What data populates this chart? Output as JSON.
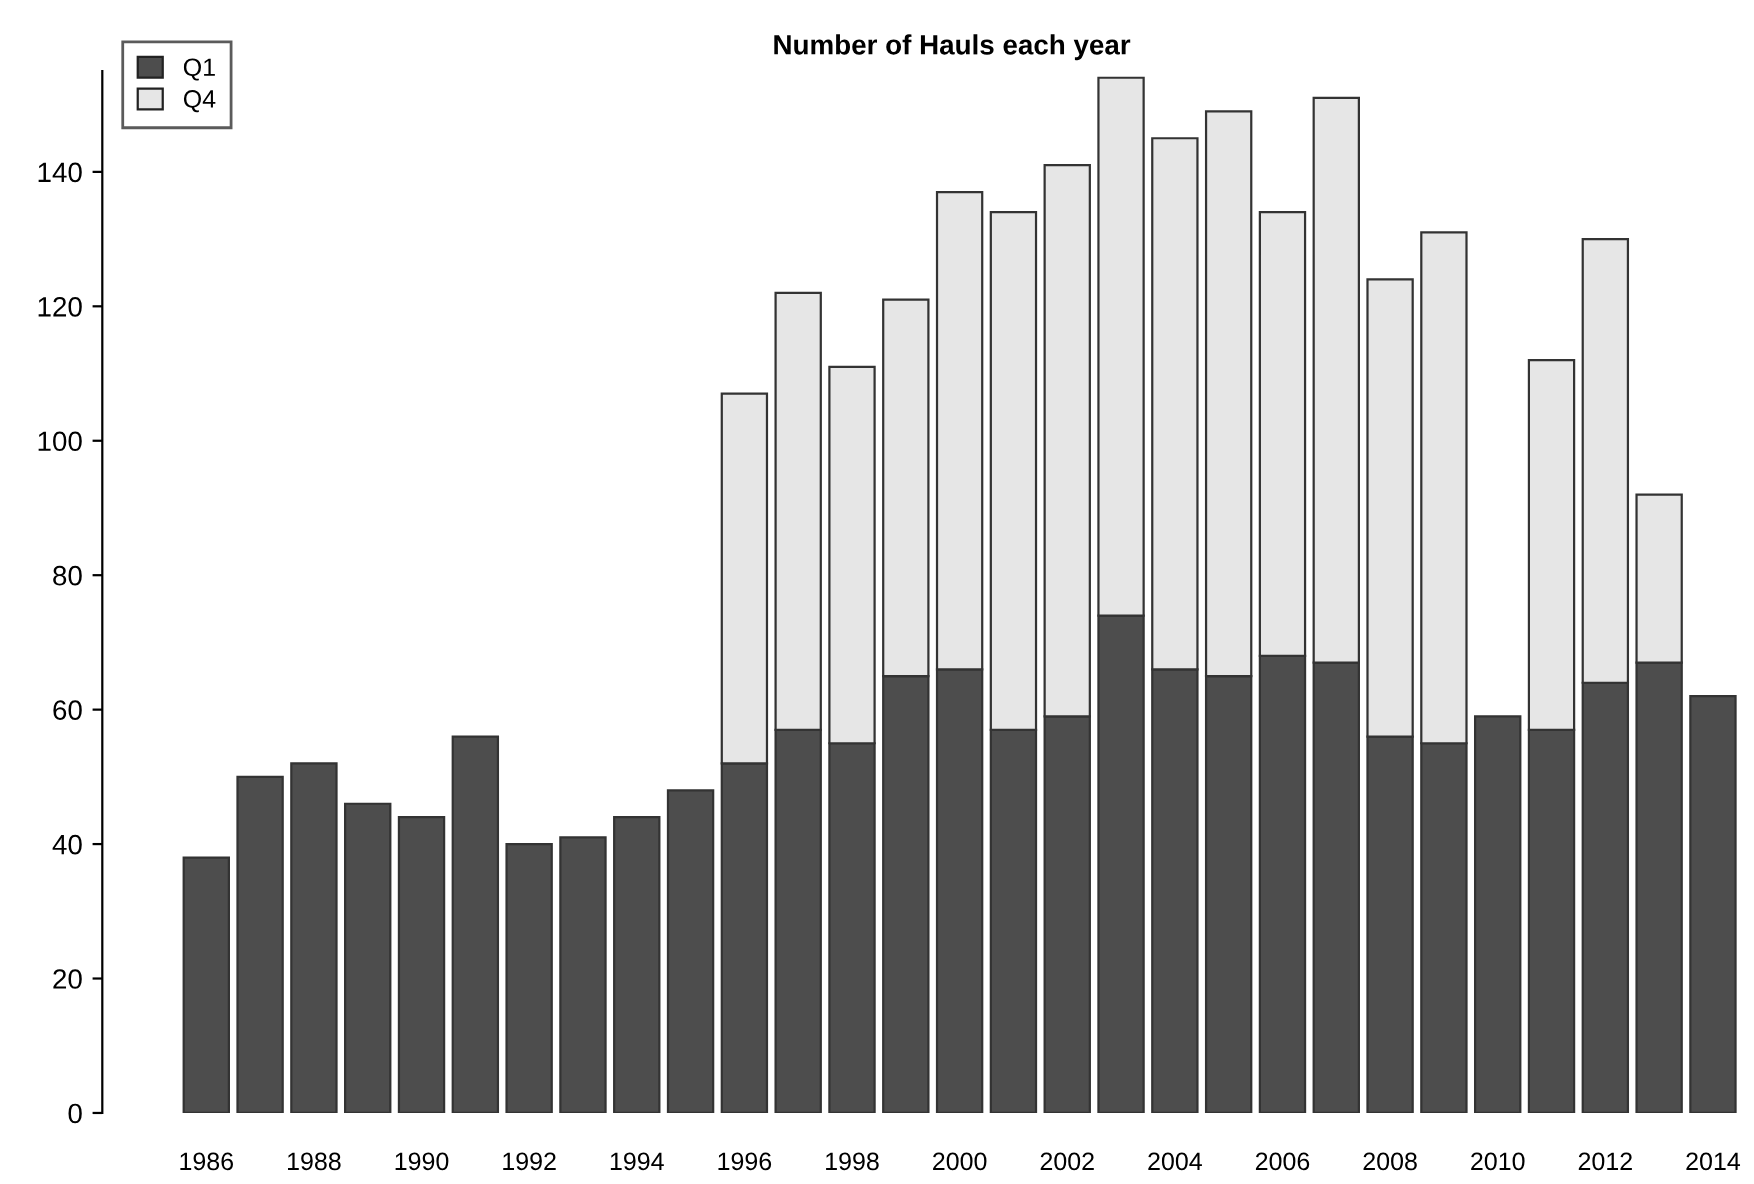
{
  "chart_data": {
    "type": "bar",
    "title": "Number of Hauls each year",
    "stacked": true,
    "categories": [
      "1986",
      null,
      "1988",
      null,
      "1990",
      null,
      "1992",
      null,
      "1994",
      null,
      "1996",
      null,
      "1998",
      null,
      "2000",
      null,
      "2002",
      null,
      "2004",
      null,
      "2006",
      null,
      "2008",
      null,
      "2010",
      null,
      "2012",
      null,
      "2014"
    ],
    "series": [
      {
        "name": "Q1",
        "color": "#4d4d4d",
        "values": [
          38,
          50,
          52,
          46,
          44,
          56,
          40,
          41,
          44,
          48,
          52,
          57,
          55,
          65,
          66,
          57,
          59,
          74,
          66,
          65,
          68,
          67,
          56,
          55,
          59,
          57,
          64,
          67,
          62
        ]
      },
      {
        "name": "Q4",
        "color": "#e6e6e6",
        "values": [
          null,
          null,
          null,
          null,
          null,
          null,
          null,
          null,
          null,
          null,
          55,
          65,
          56,
          56,
          71,
          77,
          82,
          80,
          79,
          84,
          66,
          84,
          68,
          76,
          null,
          55,
          66,
          25,
          null
        ]
      }
    ],
    "ylim": [
      0,
      155
    ],
    "yticks": [
      0,
      20,
      40,
      60,
      80,
      100,
      120,
      140
    ],
    "grid": false,
    "legend": "top left"
  }
}
